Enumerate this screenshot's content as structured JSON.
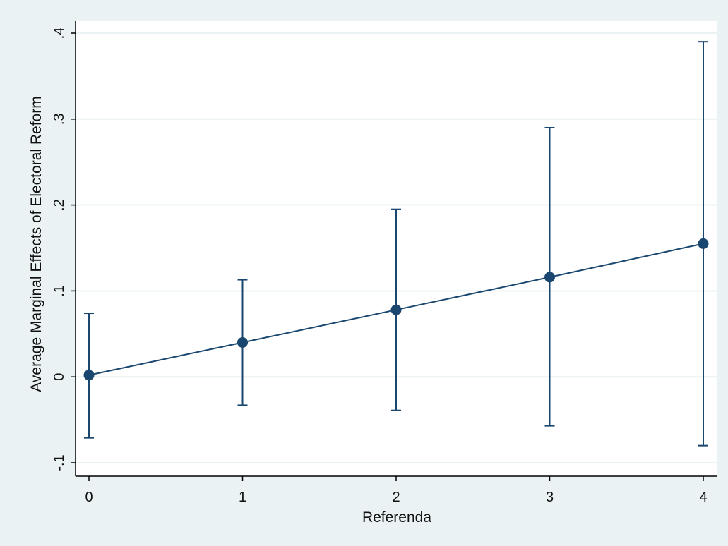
{
  "chart_data": {
    "type": "scatter",
    "title": "",
    "xlabel": "Referenda",
    "ylabel": "Average Marginal Effects of Electoral Reform",
    "x": [
      0,
      1,
      2,
      3,
      4
    ],
    "xticks": [
      "0",
      "1",
      "2",
      "3",
      "4"
    ],
    "yticks": [
      {
        "value": -0.1,
        "label": "-.1"
      },
      {
        "value": 0,
        "label": "0"
      },
      {
        "value": 0.1,
        "label": ".1"
      },
      {
        "value": 0.2,
        "label": ".2"
      },
      {
        "value": 0.3,
        "label": ".3"
      },
      {
        "value": 0.4,
        "label": ".4"
      }
    ],
    "xlim": [
      0,
      4
    ],
    "ylim": [
      -0.1,
      0.4
    ],
    "grid": "horizontal",
    "series": [
      {
        "values": [
          0.002,
          0.04,
          0.078,
          0.116,
          0.155
        ],
        "ci_lower": [
          -0.071,
          -0.033,
          -0.039,
          -0.057,
          -0.08
        ],
        "ci_upper": [
          0.074,
          0.113,
          0.195,
          0.29,
          0.39
        ],
        "connect": true
      }
    ],
    "colors": {
      "marker": "#1a476f",
      "line": "#1a476f",
      "plot_bg": "#ffffff",
      "outer_bg": "#eaf2f3",
      "grid": "#eaf2f3"
    }
  }
}
